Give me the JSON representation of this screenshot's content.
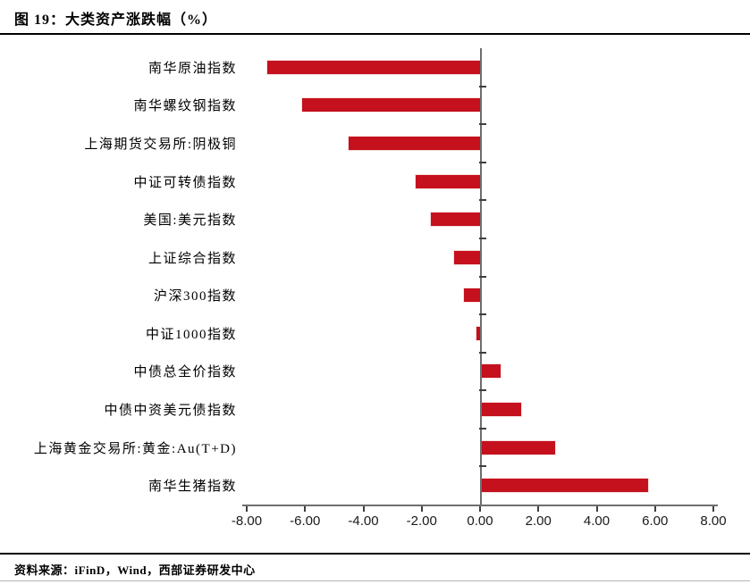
{
  "header": {
    "title": "图 19：大类资产涨跌幅（%）"
  },
  "footer": {
    "source": "资料来源：iFinD，Wind，西部证券研发中心"
  },
  "colors": {
    "bar": "#c4111d",
    "axis_line": "#6e6e6e",
    "tick": "#3f3f3f",
    "title_text": "#000000"
  },
  "chart_data": {
    "type": "bar",
    "orientation": "horizontal",
    "title": "图 19：大类资产涨跌幅（%）",
    "xlabel": "",
    "ylabel": "",
    "xlim": [
      -8,
      8
    ],
    "grid": false,
    "legend": "none",
    "categories": [
      "南华原油指数",
      "南华螺纹钢指数",
      "上海期货交易所:阴极铜",
      "中证可转债指数",
      "美国:美元指数",
      "上证综合指数",
      "沪深300指数",
      "中证1000指数",
      "中债总全价指数",
      "中债中资美元债指数",
      "上海黄金交易所:黄金:Au(T+D)",
      "南华生猪指数"
    ],
    "values": [
      -7.3,
      -6.1,
      -4.5,
      -2.2,
      -1.7,
      -0.9,
      -0.55,
      -0.12,
      0.65,
      1.35,
      2.5,
      5.7
    ],
    "xticks": [
      -8,
      -6,
      -4,
      -2,
      0,
      2,
      4,
      6,
      8
    ],
    "xtick_labels": [
      "-8.00",
      "-6.00",
      "-4.00",
      "-2.00",
      "0.00",
      "2.00",
      "4.00",
      "6.00",
      "8.00"
    ]
  }
}
